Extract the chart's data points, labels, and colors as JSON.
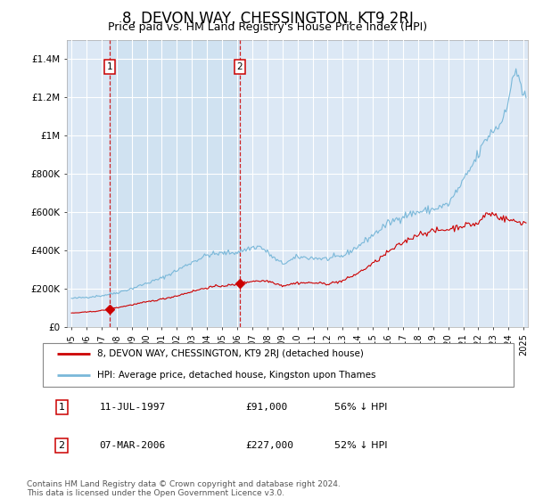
{
  "title": "8, DEVON WAY, CHESSINGTON, KT9 2RJ",
  "subtitle": "Price paid vs. HM Land Registry's House Price Index (HPI)",
  "title_fontsize": 12,
  "subtitle_fontsize": 9,
  "background_color": "#ffffff",
  "plot_bg_color": "#dce8f5",
  "shade_color": "#ccdcee",
  "grid_color": "#ffffff",
  "ylim": [
    0,
    1500000
  ],
  "xlim": [
    1994.7,
    2025.3
  ],
  "yticks": [
    0,
    200000,
    400000,
    600000,
    800000,
    1000000,
    1200000,
    1400000
  ],
  "ytick_labels": [
    "£0",
    "£200K",
    "£400K",
    "£600K",
    "£800K",
    "£1M",
    "£1.2M",
    "£1.4M"
  ],
  "xticks": [
    1995,
    1996,
    1997,
    1998,
    1999,
    2000,
    2001,
    2002,
    2003,
    2004,
    2005,
    2006,
    2007,
    2008,
    2009,
    2010,
    2011,
    2012,
    2013,
    2014,
    2015,
    2016,
    2017,
    2018,
    2019,
    2020,
    2021,
    2022,
    2023,
    2024,
    2025
  ],
  "sale1_x": 1997.54,
  "sale1_y": 91000,
  "sale2_x": 2006.17,
  "sale2_y": 227000,
  "hpi_color": "#7ab8d9",
  "price_color": "#cc0000",
  "marker_box_color": "#cc0000",
  "vline_color": "#cc0000",
  "legend_label_price": "8, DEVON WAY, CHESSINGTON, KT9 2RJ (detached house)",
  "legend_label_hpi": "HPI: Average price, detached house, Kingston upon Thames",
  "annot1_num": "1",
  "annot1_date": "11-JUL-1997",
  "annot1_price": "£91,000",
  "annot1_hpi": "56% ↓ HPI",
  "annot2_num": "2",
  "annot2_date": "07-MAR-2006",
  "annot2_price": "£227,000",
  "annot2_hpi": "52% ↓ HPI",
  "footer": "Contains HM Land Registry data © Crown copyright and database right 2024.\nThis data is licensed under the Open Government Licence v3.0.",
  "font_family": "DejaVu Sans"
}
